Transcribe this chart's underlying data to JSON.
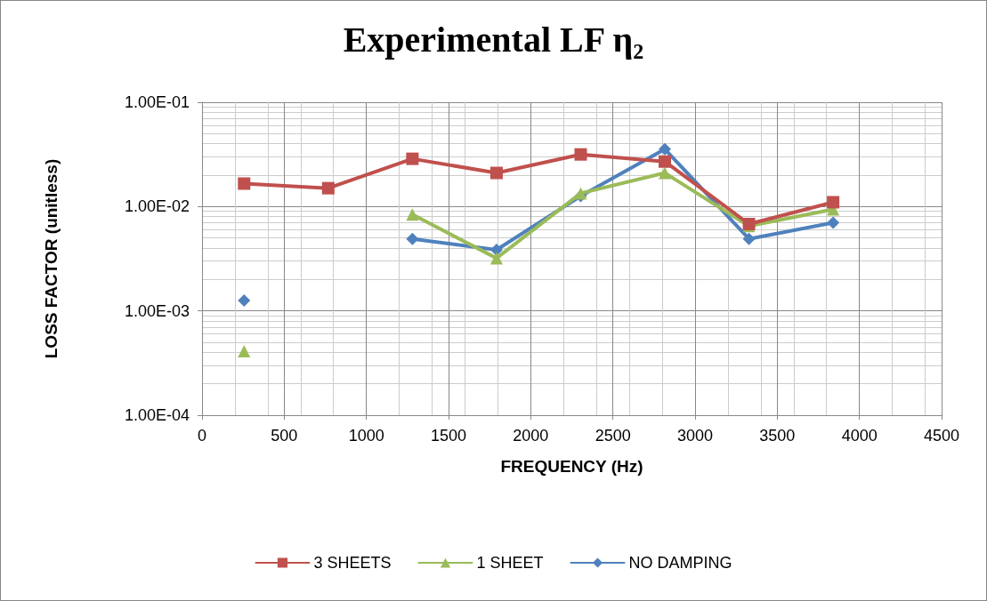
{
  "chart_data": {
    "type": "line",
    "title": "Experimental LF η₂",
    "xlabel": "FREQUENCY (Hz)",
    "ylabel": "LOSS FACTOR (unitless)",
    "x": [
      256,
      768,
      1280,
      1792,
      2304,
      2816,
      3328,
      3840
    ],
    "series": [
      {
        "name": "3 SHEETS",
        "color": "#c0504d",
        "marker": "square",
        "values": [
          0.0166,
          0.015,
          0.0287,
          0.021,
          0.0316,
          0.027,
          0.0068,
          0.011
        ]
      },
      {
        "name": "1 SHEET",
        "color": "#9bbb59",
        "marker": "triangle",
        "values": [
          0.00041,
          null,
          0.0084,
          0.0032,
          0.0134,
          0.021,
          0.0065,
          0.0094
        ]
      },
      {
        "name": "NO DAMPING",
        "color": "#4f81bd",
        "marker": "diamond",
        "values": [
          0.00126,
          null,
          0.0049,
          0.00385,
          0.0126,
          0.0355,
          0.0049,
          0.007
        ]
      }
    ],
    "log": "y",
    "xlim": [
      0,
      4500
    ],
    "xticks": [
      0,
      500,
      1000,
      1500,
      2000,
      2500,
      3000,
      3500,
      4000,
      4500
    ],
    "ylim": [
      0.0001,
      0.1
    ],
    "yticks": [
      {
        "value": 0.0001,
        "label": "1.00E-04"
      },
      {
        "value": 0.001,
        "label": "1.00E-03"
      },
      {
        "value": 0.01,
        "label": "1.00E-02"
      },
      {
        "value": 0.1,
        "label": "1.00E-01"
      }
    ],
    "grid": true,
    "legend": "bottom",
    "line_style": "solid"
  }
}
